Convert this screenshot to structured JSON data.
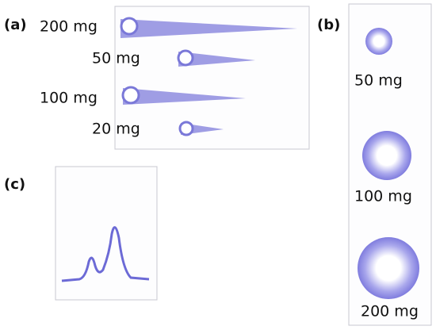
{
  "panels": [
    {
      "label": "(a)",
      "labels": [
        "200 mg",
        "50 mg",
        "100 mg",
        "20 mg"
      ]
    },
    {
      "label": "(b)",
      "labels": [
        "50 mg",
        "100 mg",
        "200 mg"
      ]
    },
    {
      "label": "(c)"
    }
  ]
}
